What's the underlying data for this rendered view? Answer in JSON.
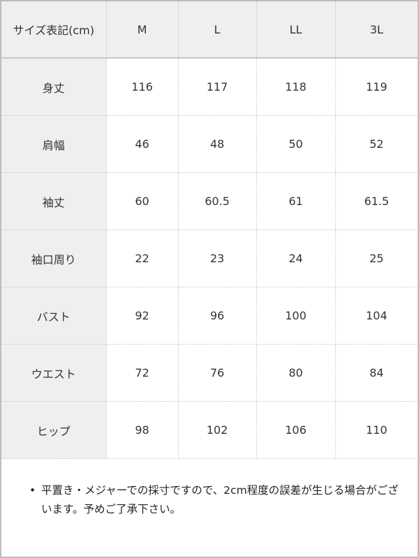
{
  "table": {
    "header": [
      "サイズ表記(cm)",
      "M",
      "L",
      "LL",
      "3L"
    ],
    "rows": [
      [
        "身丈",
        "116",
        "117",
        "118",
        "119"
      ],
      [
        "肩幅",
        "46",
        "48",
        "50",
        "52"
      ],
      [
        "袖丈",
        "60",
        "60.5",
        "61",
        "61.5"
      ],
      [
        "袖口周り",
        "22",
        "23",
        "24",
        "25"
      ],
      [
        "バスト",
        "92",
        "96",
        "100",
        "104"
      ],
      [
        "ウエスト",
        "72",
        "76",
        "80",
        "84"
      ],
      [
        "ヒップ",
        "98",
        "102",
        "106",
        "110"
      ]
    ]
  },
  "note": {
    "bullet": "•",
    "text": "平置き・メジャーでの採寸ですので、2cm程度の誤差が生じる場合がございます。予めご了承下さい。"
  }
}
